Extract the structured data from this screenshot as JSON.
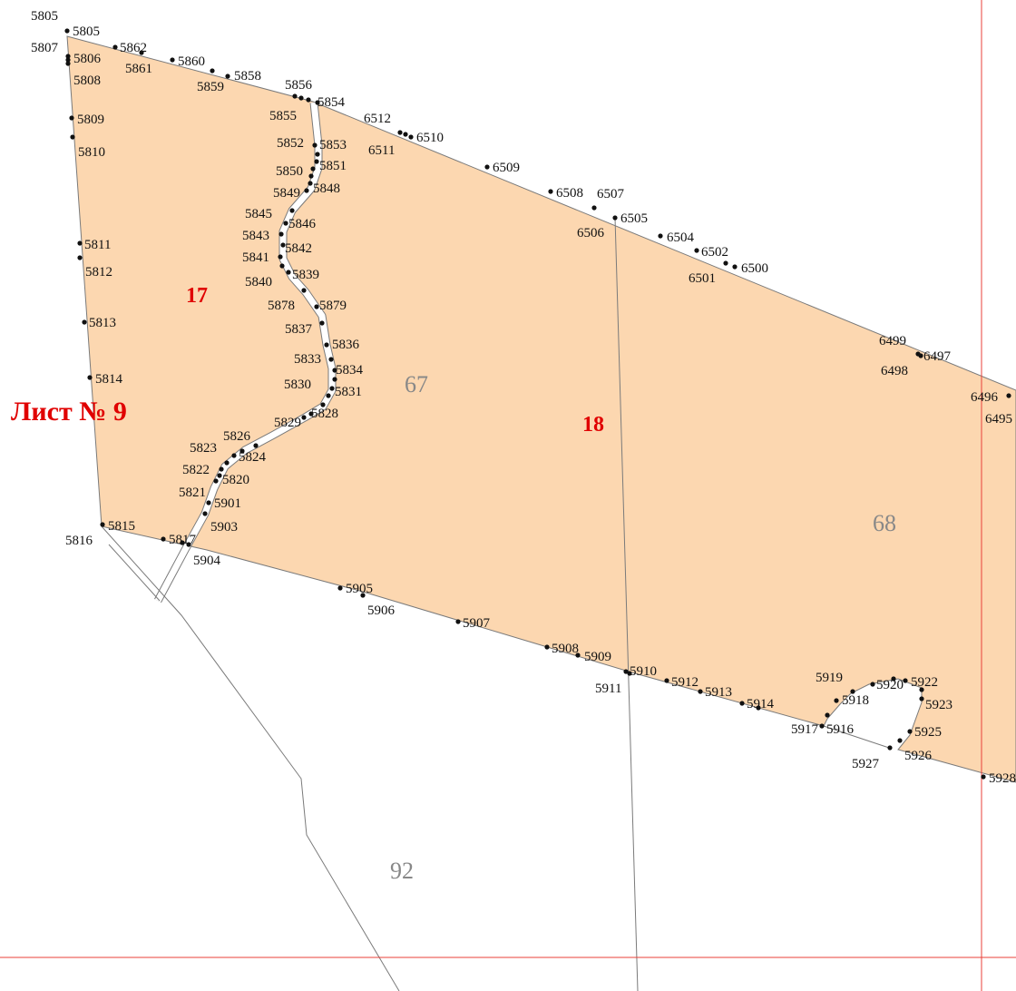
{
  "map": {
    "sheet_label": "Лист № 9",
    "fill_color": "#fcd7b0",
    "outline_color": "#7a7a7a",
    "frame_color": "#e8413a",
    "parcels": [
      {
        "name": "parcel-17",
        "label": "17"
      },
      {
        "name": "parcel-18",
        "label": "18"
      }
    ],
    "blocks": [
      {
        "name": "block-67",
        "label": "67"
      },
      {
        "name": "block-68",
        "label": "68"
      },
      {
        "name": "block-92",
        "label": "92"
      }
    ],
    "points": [
      "5805",
      "5805",
      "5807",
      "5806",
      "5808",
      "5862",
      "5861",
      "5860",
      "5859",
      "5858",
      "5856",
      "5855",
      "5854",
      "5809",
      "5810",
      "6512",
      "6511",
      "6510",
      "5852",
      "5853",
      "5851",
      "5850",
      "5849",
      "5848",
      "6509",
      "6508",
      "6507",
      "6505",
      "6506",
      "5845",
      "5846",
      "5843",
      "5842",
      "5841",
      "5839",
      "5840",
      "5811",
      "5812",
      "6504",
      "6502",
      "6501",
      "6500",
      "5878",
      "5879",
      "5837",
      "5813",
      "5836",
      "5833",
      "5834",
      "5830",
      "5831",
      "5829",
      "5828",
      "5814",
      "6499",
      "6498",
      "6497",
      "6496",
      "6495",
      "5823",
      "5826",
      "5824",
      "5822",
      "5820",
      "5821",
      "5901",
      "5903",
      "5815",
      "5816",
      "5817",
      "5904",
      "5905",
      "5906",
      "5907",
      "5908",
      "5909",
      "5910",
      "5911",
      "5912",
      "5913",
      "5914",
      "5919",
      "5918",
      "5920",
      "5922",
      "5923",
      "5917",
      "5916",
      "5925",
      "5927",
      "5926",
      "5928"
    ]
  }
}
